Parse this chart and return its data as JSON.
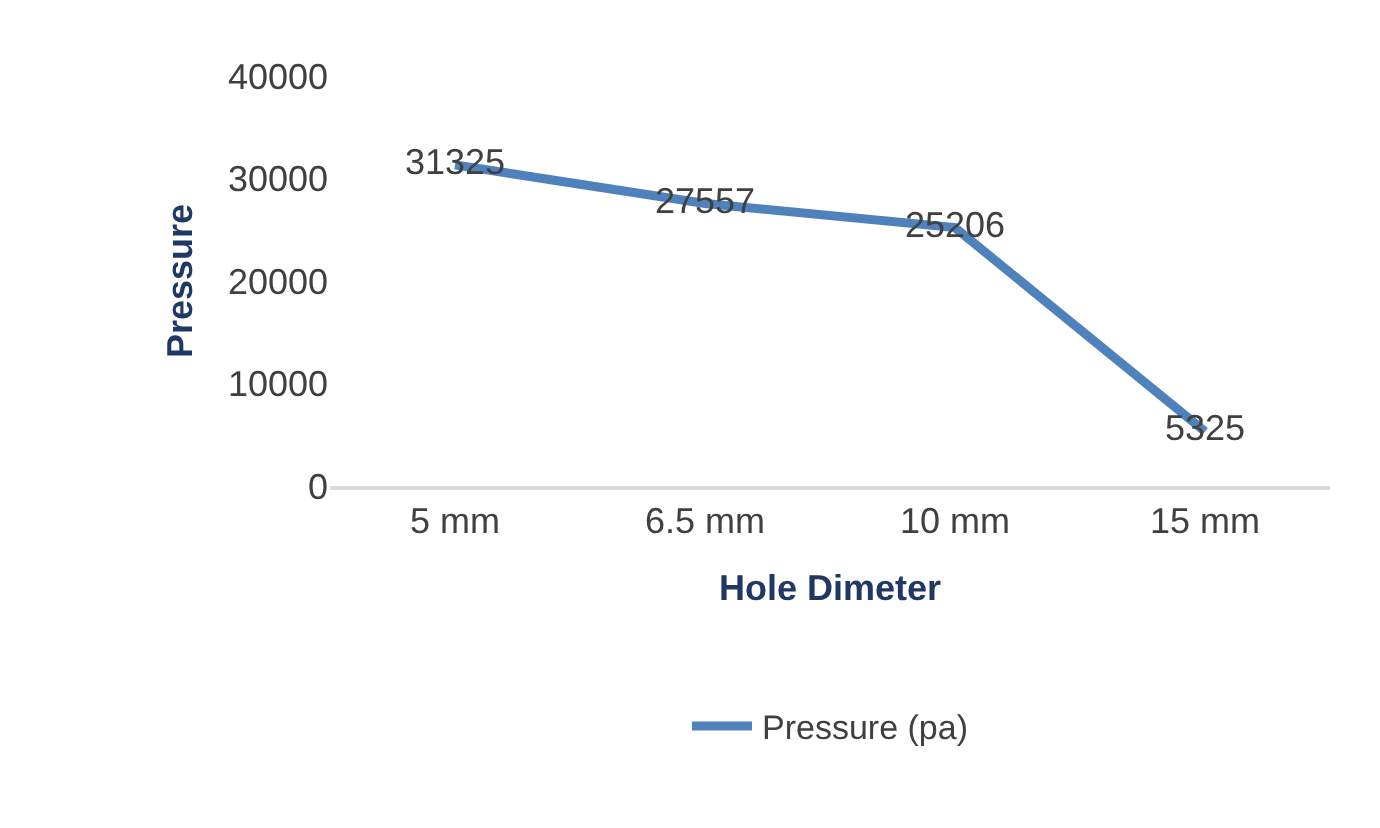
{
  "chart_data": {
    "type": "line",
    "xlabel": "Hole Dimeter",
    "ylabel": "Pressure",
    "categories": [
      "5 mm",
      "6.5 mm",
      "10 mm",
      "15 mm"
    ],
    "series": [
      {
        "name": "Pressure (pa)",
        "color": "#4f81bd",
        "values": [
          31325,
          27557,
          25206,
          5325
        ]
      }
    ],
    "ylim": [
      0,
      40000
    ],
    "yticks": [
      0,
      10000,
      20000,
      30000,
      40000
    ],
    "grid": false,
    "legend": "bottom",
    "marker": "none",
    "line_style": "solid",
    "data_labels": true
  }
}
